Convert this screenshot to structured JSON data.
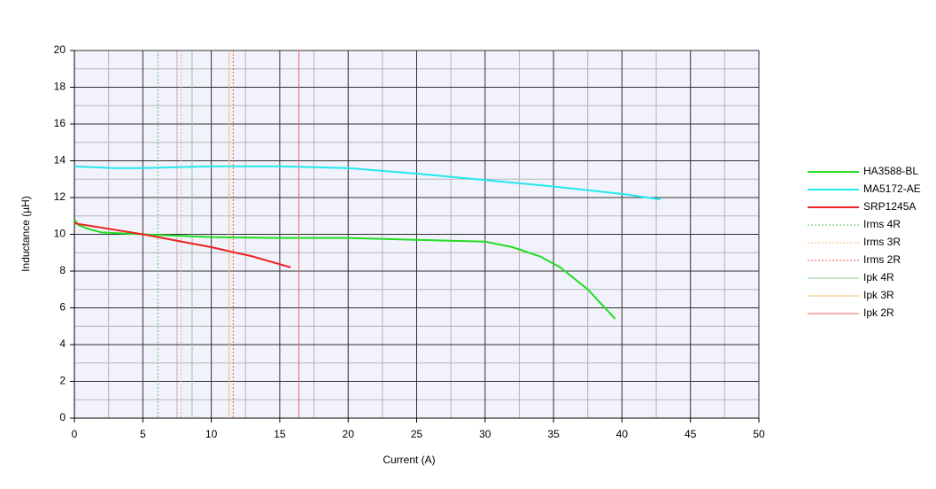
{
  "chart_data": {
    "type": "line",
    "xlabel": "Current (A)",
    "ylabel": "Inductance (µH)",
    "xlim": [
      0,
      50
    ],
    "ylim": [
      0,
      20
    ],
    "xticks": [
      0,
      5,
      10,
      15,
      20,
      25,
      30,
      35,
      40,
      45,
      50
    ],
    "yticks": [
      0,
      2,
      4,
      6,
      8,
      10,
      12,
      14,
      16,
      18,
      20
    ],
    "grid": true,
    "minor_grid": true,
    "legend": "right",
    "series": [
      {
        "name": "HA3588-BL",
        "color": "#22dd22",
        "x": [
          0,
          0.3,
          1,
          2,
          5,
          10,
          15,
          20,
          25,
          30,
          32,
          34,
          35.5,
          37.5,
          39.5
        ],
        "values": [
          10.8,
          10.5,
          10.3,
          10.1,
          10.0,
          9.85,
          9.8,
          9.8,
          9.7,
          9.6,
          9.3,
          8.8,
          8.2,
          7.0,
          5.4
        ]
      },
      {
        "name": "MA5172-AE",
        "color": "#22e8ee",
        "x": [
          0,
          3,
          5,
          10,
          15,
          20,
          25,
          30,
          35,
          40,
          42.8
        ],
        "values": [
          13.7,
          13.6,
          13.6,
          13.7,
          13.7,
          13.6,
          13.3,
          12.95,
          12.6,
          12.2,
          11.9
        ]
      },
      {
        "name": "SRP1245A",
        "color": "#ee2222",
        "x": [
          0,
          5,
          10,
          13,
          15.8
        ],
        "values": [
          10.6,
          10.0,
          9.3,
          8.8,
          8.2
        ]
      }
    ],
    "reference_lines": [
      {
        "name": "Irms 4R",
        "color": "#66bb66",
        "style": "dotted",
        "x": 6.1
      },
      {
        "name": "Irms 3R",
        "color": "#f0b070",
        "style": "dotted",
        "x": 7.8
      },
      {
        "name": "Irms 2R",
        "color": "#ff5050",
        "style": "dotted",
        "x": 11.6
      },
      {
        "name": "Ipk 4R",
        "color": "#88c888",
        "style": "solid",
        "x": 8.6
      },
      {
        "name": "Ipk 3R",
        "color": "#f0c070",
        "style": "solid",
        "x": 11.3
      },
      {
        "name": "Ipk 2R",
        "color": "#ff6060",
        "style": "solid",
        "x": 16.4
      }
    ]
  }
}
